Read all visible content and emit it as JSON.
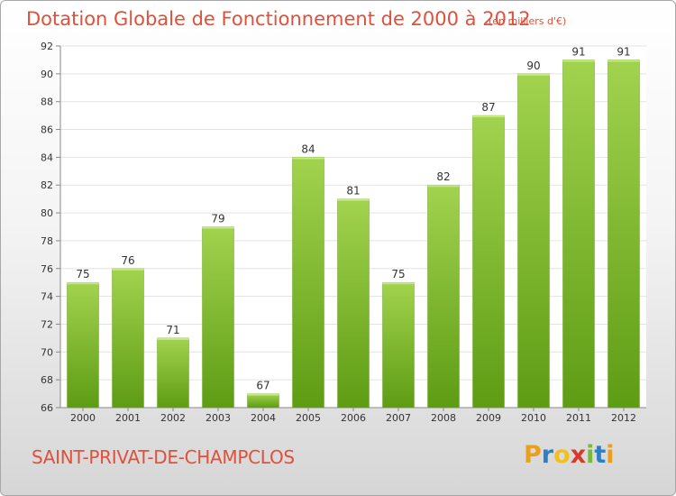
{
  "header": {
    "title": "Dotation Globale de Fonctionnement de 2000 à 2012",
    "unit": "(en milliers d'€)"
  },
  "footer": {
    "commune": "SAINT-PRIVAT-DE-CHAMPCLOS",
    "logo_letters": [
      "P",
      "r",
      "o",
      "x",
      "i",
      "t",
      "i"
    ],
    "logo_colors": [
      "#e8a020",
      "#2e7fc4",
      "#f0c020",
      "#d83a2a",
      "#7ab83a",
      "#2e7fc4",
      "#e8a020"
    ]
  },
  "colors": {
    "title": "#e0503a",
    "bar_light": "#a2d34e",
    "bar_dark": "#5e9c14",
    "grid": "#e3e3e3"
  },
  "chart_data": {
    "type": "bar",
    "categories": [
      "2000",
      "2001",
      "2002",
      "2003",
      "2004",
      "2005",
      "2006",
      "2007",
      "2008",
      "2009",
      "2010",
      "2011",
      "2012"
    ],
    "values": [
      75,
      76,
      71,
      79,
      67,
      84,
      81,
      75,
      82,
      87,
      90,
      91,
      91
    ],
    "title": "Dotation Globale de Fonctionnement de 2000 à 2012",
    "ylim": [
      66,
      92
    ],
    "yticks": [
      66,
      68,
      70,
      72,
      74,
      76,
      78,
      80,
      82,
      84,
      86,
      88,
      90,
      92
    ],
    "grid": true,
    "data_labels": true
  }
}
